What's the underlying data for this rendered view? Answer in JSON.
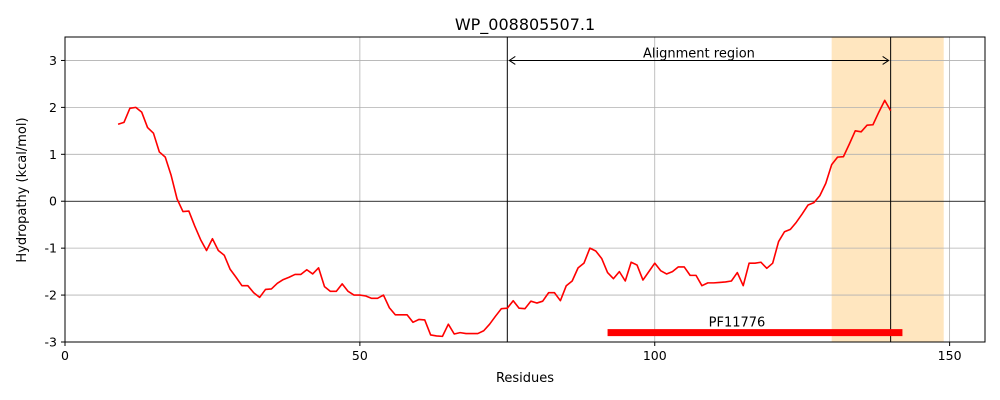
{
  "chart_data": {
    "type": "line",
    "title": "WP_008805507.1",
    "xlabel": "Residues",
    "ylabel": "Hydropathy (kcal/mol)",
    "xlim": [
      0,
      156
    ],
    "ylim": [
      -3,
      3.5
    ],
    "x_ticks": [
      0,
      50,
      100,
      150
    ],
    "y_ticks": [
      -3,
      -2,
      -1,
      0,
      1,
      2,
      3
    ],
    "grid": true,
    "series": [
      {
        "color": "#ff0000",
        "x": [
          9,
          10,
          11,
          12,
          13,
          14,
          15,
          16,
          17,
          18,
          19,
          20,
          21,
          22,
          23,
          24,
          25,
          26,
          27,
          28,
          29,
          30,
          31,
          32,
          33,
          34,
          35,
          36,
          37,
          38,
          39,
          40,
          41,
          42,
          43,
          44,
          45,
          46,
          47,
          48,
          49,
          50,
          51,
          52,
          53,
          54,
          55,
          56,
          57,
          58,
          59,
          60,
          61,
          62,
          63,
          64,
          65,
          66,
          67,
          68,
          69,
          70,
          71,
          72,
          73,
          74,
          75,
          76,
          77,
          78,
          79,
          80,
          81,
          82,
          83,
          84,
          85,
          86,
          87,
          88,
          89,
          90,
          91,
          92,
          93,
          94,
          95,
          96,
          97,
          98,
          99,
          100,
          101,
          102,
          103,
          104,
          105,
          106,
          107,
          108,
          109,
          110,
          111,
          112,
          113,
          114,
          115,
          116,
          117,
          118,
          119,
          120,
          121,
          122,
          123,
          124,
          125,
          126,
          127,
          128,
          129,
          130,
          131,
          132,
          133,
          134,
          135,
          136,
          137,
          138,
          139,
          140
        ],
        "y": [
          1.64,
          1.68,
          1.98,
          2.0,
          1.9,
          1.57,
          1.45,
          1.05,
          0.94,
          0.55,
          0.05,
          -0.22,
          -0.21,
          -0.53,
          -0.82,
          -1.05,
          -0.8,
          -1.05,
          -1.15,
          -1.45,
          -1.62,
          -1.8,
          -1.8,
          -1.95,
          -2.05,
          -1.88,
          -1.87,
          -1.75,
          -1.67,
          -1.62,
          -1.56,
          -1.56,
          -1.46,
          -1.55,
          -1.42,
          -1.82,
          -1.92,
          -1.92,
          -1.76,
          -1.92,
          -2.0,
          -2.0,
          -2.02,
          -2.07,
          -2.07,
          -2.0,
          -2.27,
          -2.42,
          -2.42,
          -2.42,
          -2.58,
          -2.52,
          -2.53,
          -2.85,
          -2.87,
          -2.88,
          -2.62,
          -2.83,
          -2.8,
          -2.82,
          -2.82,
          -2.82,
          -2.76,
          -2.62,
          -2.45,
          -2.29,
          -2.28,
          -2.12,
          -2.28,
          -2.29,
          -2.13,
          -2.17,
          -2.13,
          -1.95,
          -1.95,
          -2.12,
          -1.8,
          -1.7,
          -1.42,
          -1.32,
          -1.0,
          -1.06,
          -1.22,
          -1.52,
          -1.65,
          -1.5,
          -1.7,
          -1.3,
          -1.36,
          -1.68,
          -1.5,
          -1.32,
          -1.48,
          -1.55,
          -1.5,
          -1.4,
          -1.4,
          -1.58,
          -1.58,
          -1.8,
          -1.74,
          -1.74,
          -1.73,
          -1.72,
          -1.7,
          -1.52,
          -1.8,
          -1.32,
          -1.32,
          -1.3,
          -1.43,
          -1.32,
          -0.86,
          -0.65,
          -0.6,
          -0.45,
          -0.27,
          -0.08,
          -0.03,
          0.12,
          0.38,
          0.78,
          0.94,
          0.95,
          1.22,
          1.5,
          1.48,
          1.62,
          1.63,
          1.9,
          2.15,
          1.93
        ]
      }
    ],
    "highlight_band": {
      "x0": 130,
      "x1": 149,
      "color": "#ffe6bf"
    },
    "vlines": [
      75,
      140
    ],
    "hline": 0,
    "annotations": [
      {
        "text": "Alignment region",
        "x_start": 75,
        "x_end": 140,
        "y": 3.0
      },
      {
        "text": "PF11776",
        "x_start": 92,
        "x_end": 142,
        "y": -2.8,
        "color": "#ff0000"
      }
    ]
  }
}
